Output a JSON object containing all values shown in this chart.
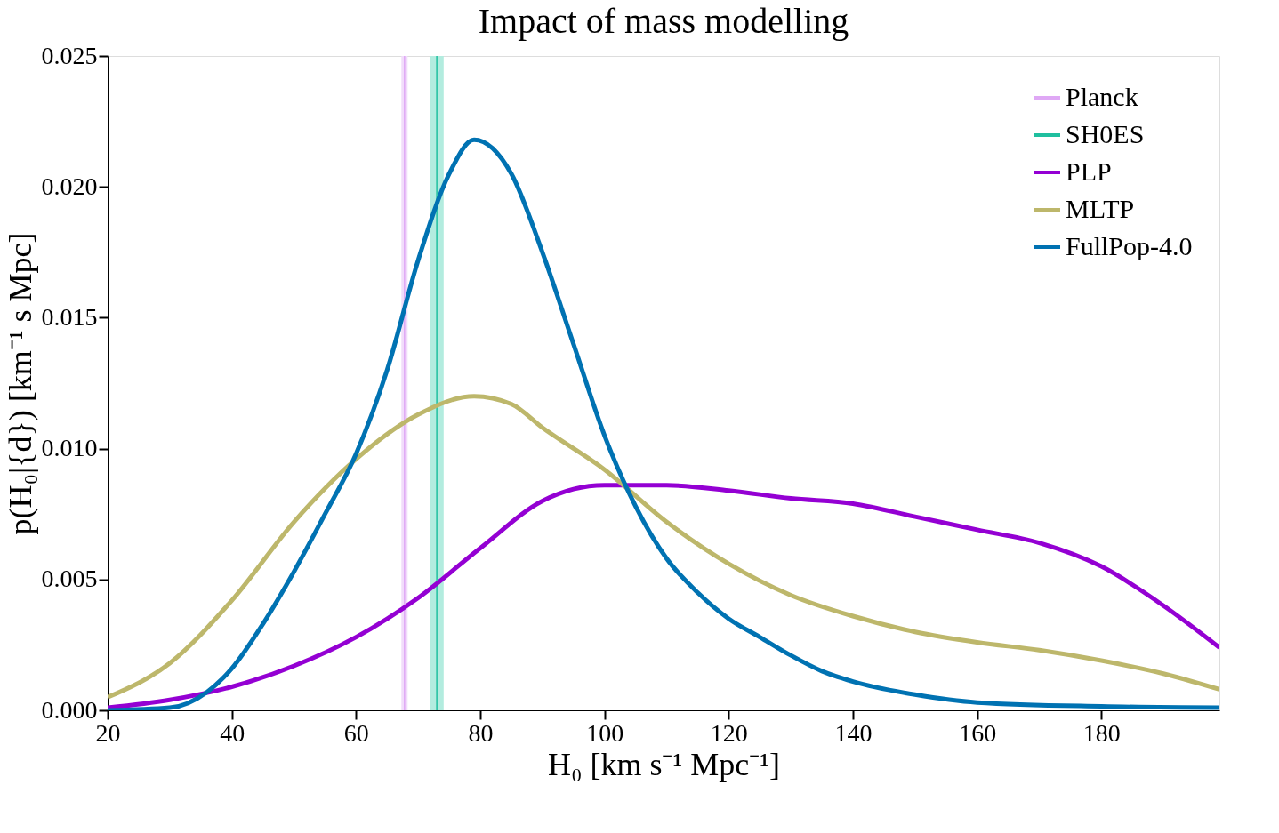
{
  "chart_data": {
    "type": "line",
    "title": "Impact of mass modelling",
    "xlabel": "H₀ [km s⁻¹ Mpc⁻¹]",
    "ylabel": "p(H₀|{d}) [km⁻¹ s Mpc]",
    "xlim": [
      20,
      199
    ],
    "xticks": [
      20,
      40,
      60,
      80,
      100,
      120,
      140,
      160,
      180
    ],
    "ylim": [
      0,
      0.025
    ],
    "yticks": [
      {
        "value": 0,
        "label": "0.000"
      },
      {
        "value": 0.005,
        "label": "0.005"
      },
      {
        "value": 0.01,
        "label": "0.010"
      },
      {
        "value": 0.015,
        "label": "0.015"
      },
      {
        "value": 0.02,
        "label": "0.020"
      },
      {
        "value": 0.025,
        "label": "0.025"
      }
    ],
    "grid": false,
    "legend": "top right",
    "line_style": "solid",
    "marker": "none",
    "bands": [
      {
        "axis": "x",
        "from": 67.3,
        "to": 68.3,
        "color": "#f1dcfb"
      },
      {
        "axis": "x",
        "from": 71.9,
        "to": 74.1,
        "color": "#b3ecdf"
      }
    ],
    "series": [
      {
        "name": "Planck",
        "color": "#dfa8f5",
        "x": [
          67.8,
          67.8
        ],
        "values": [
          0,
          0.025
        ]
      },
      {
        "name": "SH0ES",
        "color": "#1fbf9f",
        "x": [
          73.0,
          73.0
        ],
        "values": [
          0,
          0.025
        ]
      },
      {
        "name": "PLP",
        "color": "#9400d3",
        "x": [
          20,
          30,
          40,
          50,
          60,
          70,
          80,
          90,
          100,
          110,
          120,
          130,
          140,
          150,
          160,
          170,
          180,
          190,
          199
        ],
        "values": [
          0.0001,
          0.0004,
          0.0009,
          0.0017,
          0.0028,
          0.0043,
          0.0062,
          0.008,
          0.0086,
          0.0086,
          0.0084,
          0.0081,
          0.0079,
          0.0074,
          0.0069,
          0.0064,
          0.0055,
          0.004,
          0.0024
        ]
      },
      {
        "name": "MLTP",
        "color": "#bdb76b",
        "x": [
          20,
          30,
          40,
          50,
          60,
          70,
          79,
          85,
          90,
          100,
          110,
          120,
          130,
          140,
          150,
          160,
          170,
          180,
          190,
          199
        ],
        "values": [
          0.0005,
          0.0018,
          0.0042,
          0.0072,
          0.0096,
          0.0113,
          0.012,
          0.0117,
          0.0108,
          0.0092,
          0.0072,
          0.0056,
          0.0044,
          0.0036,
          0.003,
          0.0026,
          0.0023,
          0.0019,
          0.0014,
          0.0008
        ]
      },
      {
        "name": "FullPop-4.0",
        "color": "#0072b2",
        "x": [
          20,
          30,
          36,
          40,
          45,
          50,
          55,
          60,
          65,
          70,
          75,
          79,
          85,
          90,
          95,
          100,
          105,
          110,
          115,
          120,
          125,
          130,
          135,
          140,
          150,
          160,
          180,
          199
        ],
        "values": [
          0.0,
          0.0001,
          0.0007,
          0.0016,
          0.0033,
          0.0053,
          0.0075,
          0.0098,
          0.013,
          0.0172,
          0.0205,
          0.0218,
          0.0205,
          0.0175,
          0.014,
          0.0105,
          0.0078,
          0.0058,
          0.0045,
          0.0035,
          0.0028,
          0.0021,
          0.0015,
          0.0011,
          0.0006,
          0.0003,
          0.00015,
          0.0001
        ]
      }
    ]
  }
}
